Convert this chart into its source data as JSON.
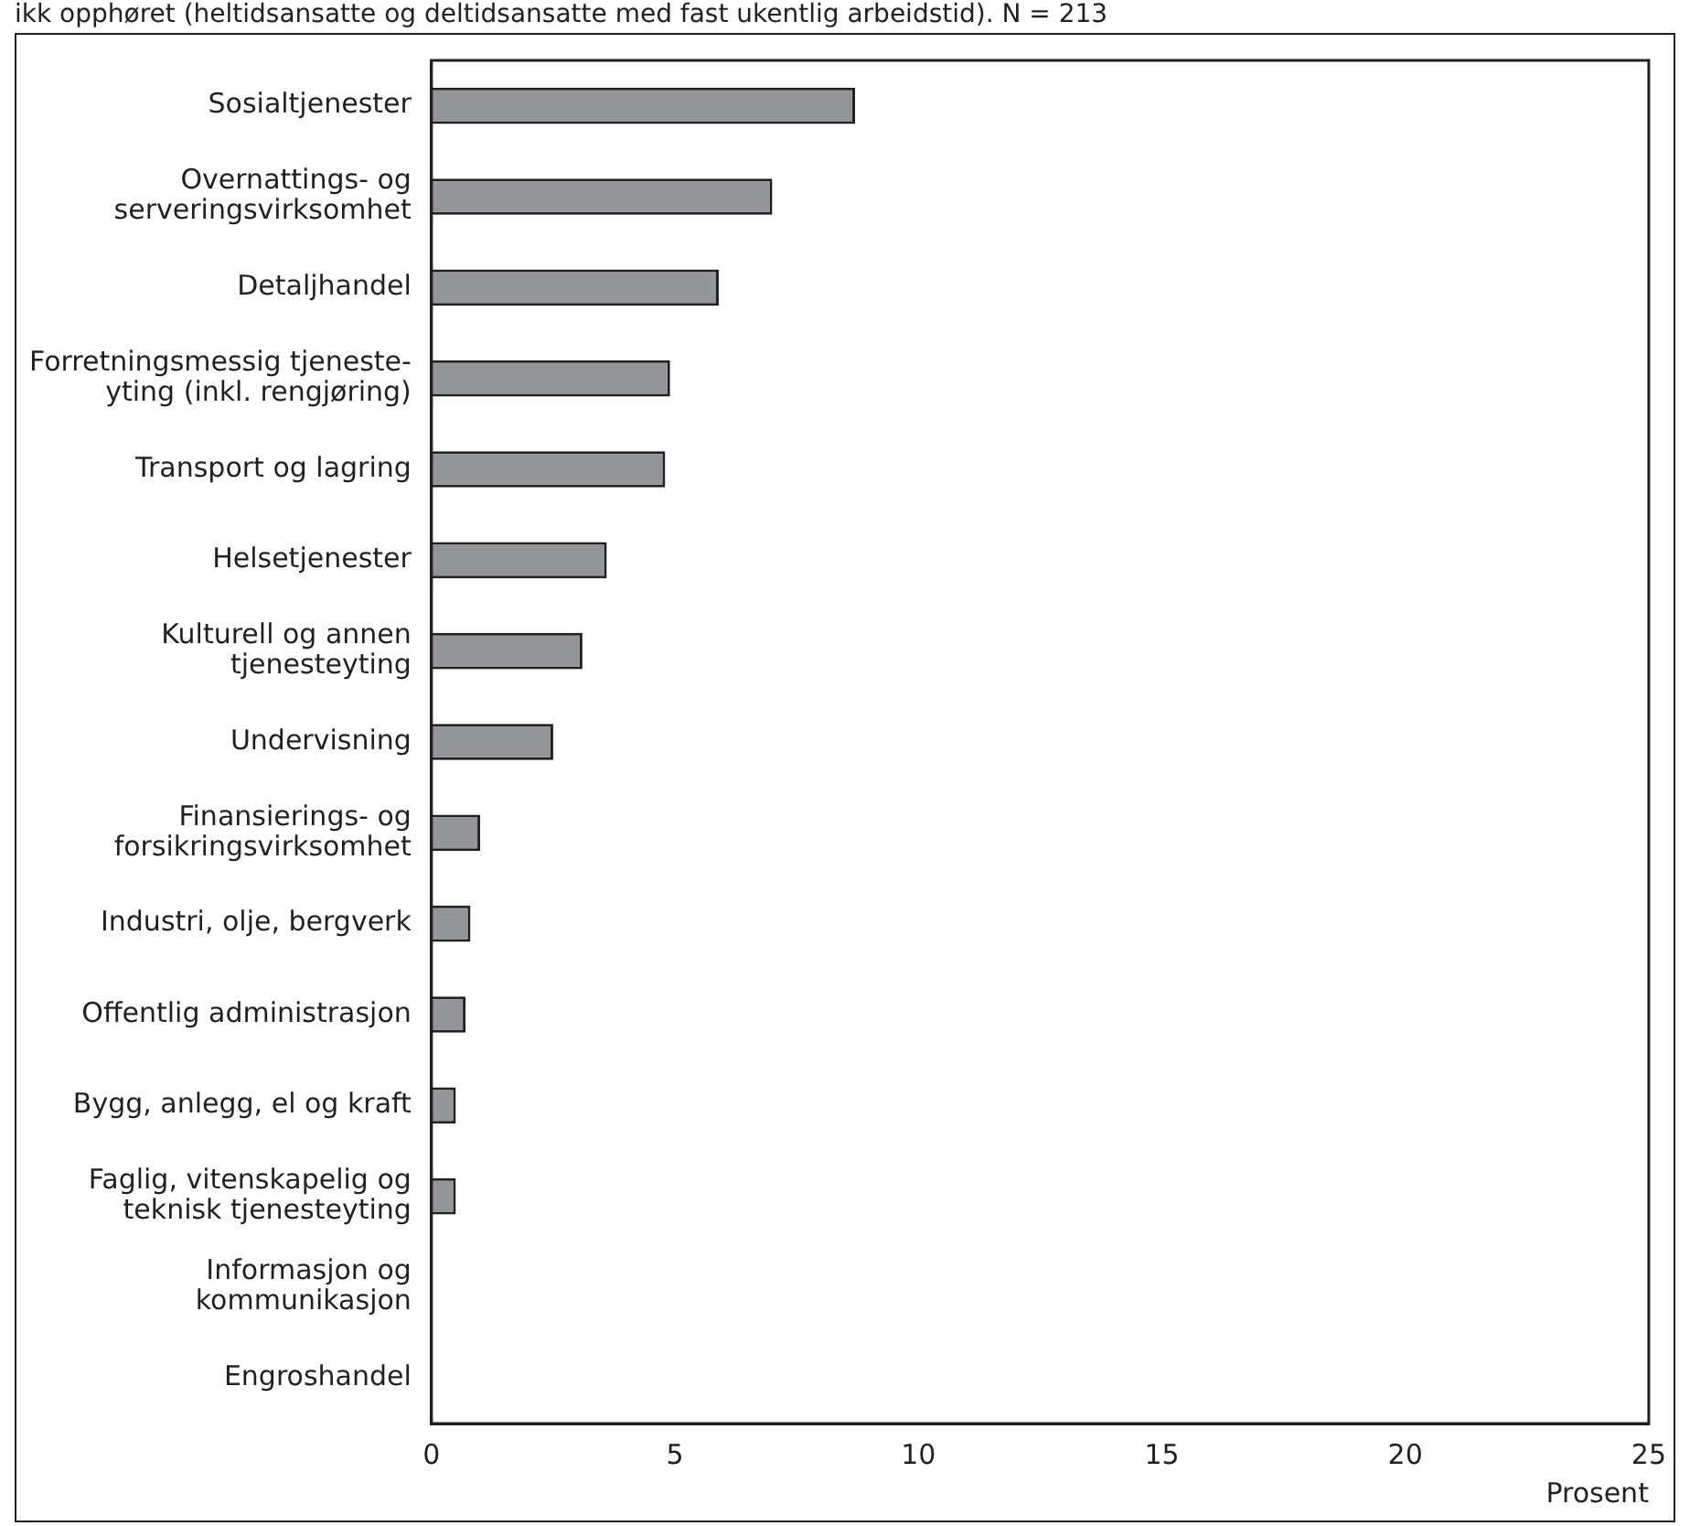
{
  "chart_data": {
    "type": "bar",
    "orientation": "horizontal",
    "title": "ikk opphøret (heltidsansatte og deltidsansatte med fast ukentlig arbeidstid). N = 213",
    "xlabel": "Prosent",
    "categories": [
      "Sosialtjenester",
      "Overnattings- og\nserveringsvirksomhet",
      "Detaljhandel",
      "Forretningsmessig tjeneste-\nyting (inkl. rengjøring)",
      "Transport og lagring",
      "Helsetjenester",
      "Kulturell og annen\ntjenesteyting",
      "Undervisning",
      "Finansierings- og\nforsikringsvirksomhet",
      "Industri, olje, bergverk",
      "Offentlig administrasjon",
      "Bygg, anlegg, el og kraft",
      "Faglig, vitenskapelig og\nteknisk tjenesteyting",
      "Informasjon og\nkommunikasjon",
      "Engroshandel"
    ],
    "values": [
      8.7,
      7.0,
      5.9,
      4.9,
      4.8,
      3.6,
      3.1,
      2.5,
      1.0,
      0.8,
      0.7,
      0.5,
      0.5,
      0,
      0
    ],
    "color": "#939598",
    "xlim": [
      0,
      25
    ],
    "xticks": [
      0,
      5,
      10,
      15,
      20,
      25
    ],
    "grid": false,
    "legend": false
  }
}
